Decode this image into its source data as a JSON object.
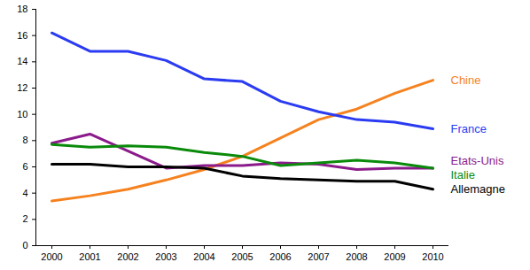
{
  "chart_data": {
    "type": "line",
    "x": [
      2000,
      2001,
      2002,
      2003,
      2004,
      2005,
      2006,
      2007,
      2008,
      2009,
      2010
    ],
    "ylim": [
      0,
      18
    ],
    "yticks": [
      0,
      2,
      4,
      6,
      8,
      10,
      12,
      14,
      16,
      18
    ],
    "grid": false,
    "series": [
      {
        "name": "Chine",
        "color": "#f5821f",
        "values": [
          3.4,
          3.8,
          4.3,
          5.0,
          5.8,
          6.8,
          8.2,
          9.6,
          10.4,
          11.6,
          12.6
        ]
      },
      {
        "name": "France",
        "color": "#2a3bf2",
        "values": [
          16.2,
          14.8,
          14.8,
          14.1,
          12.7,
          12.5,
          11.0,
          10.2,
          9.6,
          9.4,
          8.9
        ]
      },
      {
        "name": "Etats-Unis",
        "color": "#8b1a8b",
        "values": [
          7.8,
          8.5,
          7.2,
          5.9,
          6.1,
          6.1,
          6.3,
          6.2,
          5.8,
          5.9,
          5.9
        ]
      },
      {
        "name": "Italie",
        "color": "#0a8a0a",
        "values": [
          7.7,
          7.5,
          7.6,
          7.5,
          7.1,
          6.8,
          6.1,
          6.3,
          6.5,
          6.3,
          5.9
        ]
      },
      {
        "name": "Allemagne",
        "color": "#000000",
        "values": [
          6.2,
          6.2,
          6.0,
          6.0,
          5.9,
          5.3,
          5.1,
          5.0,
          4.9,
          4.9,
          4.3
        ]
      }
    ]
  }
}
